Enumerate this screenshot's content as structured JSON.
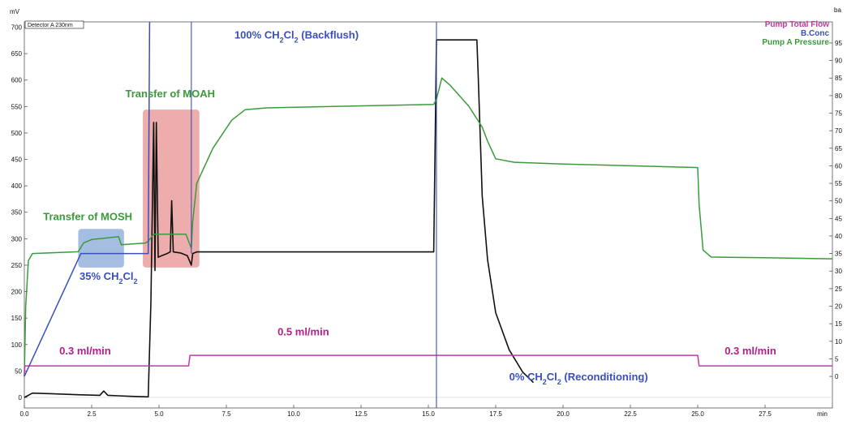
{
  "chart_data": {
    "type": "line",
    "detector_label": "Detector A 230nm",
    "y_left": {
      "unit": "mV",
      "lim": [
        -20,
        710
      ],
      "ticks": [
        700,
        650,
        600,
        550,
        500,
        450,
        400,
        350,
        300,
        250,
        200,
        150,
        100,
        50,
        0
      ]
    },
    "y_right": {
      "unit": "ba",
      "lim": [
        -9,
        101
      ],
      "ticks": [
        95,
        90,
        85,
        80,
        75,
        70,
        65,
        60,
        55,
        50,
        45,
        40,
        35,
        30,
        25,
        20,
        15,
        10,
        5,
        0
      ]
    },
    "x": {
      "unit": "min",
      "lim": [
        0,
        30
      ],
      "ticks": [
        "0.0",
        "2.5",
        "5.0",
        "7.5",
        "10.0",
        "12.5",
        "15.0",
        "17.5",
        "20.0",
        "22.5",
        "25.0",
        "27.5"
      ],
      "tick_values": [
        0,
        2.5,
        5,
        7.5,
        10,
        12.5,
        15,
        17.5,
        20,
        22.5,
        25,
        27.5
      ]
    },
    "legend": [
      {
        "name": "Pump Total Flow",
        "color": "#c23aa0"
      },
      {
        "name": "B.Conc",
        "color": "#3a4fb8"
      },
      {
        "name": "Pump A Pressure",
        "color": "#3c9a3c"
      }
    ],
    "series": [
      {
        "name": "Detector A 230nm",
        "axis": "left",
        "color": "#111111",
        "points": [
          [
            0,
            0
          ],
          [
            0.3,
            8
          ],
          [
            1,
            7
          ],
          [
            2,
            5
          ],
          [
            2.8,
            4
          ],
          [
            2.95,
            12
          ],
          [
            3.1,
            4
          ],
          [
            3.5,
            3
          ],
          [
            4,
            2
          ],
          [
            4.6,
            1
          ],
          [
            4.7,
            180
          ],
          [
            4.8,
            520
          ],
          [
            4.85,
            240
          ],
          [
            4.9,
            520
          ],
          [
            4.97,
            265
          ],
          [
            5.1,
            268
          ],
          [
            5.3,
            272
          ],
          [
            5.42,
            275
          ],
          [
            5.47,
            372
          ],
          [
            5.53,
            275
          ],
          [
            5.8,
            273
          ],
          [
            6.05,
            268
          ],
          [
            6.2,
            250
          ],
          [
            6.25,
            272
          ],
          [
            6.4,
            275
          ],
          [
            15.2,
            275
          ],
          [
            15.3,
            676
          ],
          [
            16.8,
            676
          ],
          [
            16.85,
            610
          ],
          [
            17.0,
            380
          ],
          [
            17.2,
            260
          ],
          [
            17.5,
            160
          ],
          [
            18.0,
            90
          ],
          [
            18.5,
            48
          ],
          [
            18.9,
            28
          ]
        ]
      },
      {
        "name": "Pump A Pressure",
        "axis": "right",
        "color": "#3c9a3c",
        "points": [
          [
            0,
            0
          ],
          [
            0.05,
            20
          ],
          [
            0.15,
            33
          ],
          [
            0.3,
            35
          ],
          [
            2,
            35.5
          ],
          [
            2.2,
            38
          ],
          [
            2.5,
            39
          ],
          [
            3.5,
            39.8
          ],
          [
            3.6,
            37.5
          ],
          [
            4.5,
            38
          ],
          [
            4.6,
            38.5
          ],
          [
            4.8,
            40.5
          ],
          [
            6.0,
            40.5
          ],
          [
            6.2,
            36.5
          ],
          [
            6.25,
            44
          ],
          [
            6.4,
            55
          ],
          [
            7.0,
            65
          ],
          [
            7.7,
            73
          ],
          [
            8.2,
            76
          ],
          [
            9.0,
            76.5
          ],
          [
            12,
            77
          ],
          [
            15.2,
            77.5
          ],
          [
            15.3,
            79
          ],
          [
            15.5,
            85
          ],
          [
            15.8,
            83
          ],
          [
            16.5,
            77
          ],
          [
            17.0,
            71
          ],
          [
            17.2,
            67
          ],
          [
            17.5,
            62
          ],
          [
            18.2,
            61
          ],
          [
            20,
            60.5
          ],
          [
            22.5,
            60
          ],
          [
            25.0,
            59.5
          ],
          [
            25.05,
            49
          ],
          [
            25.2,
            36
          ],
          [
            25.5,
            34
          ],
          [
            27.5,
            33.8
          ],
          [
            30,
            33.5
          ]
        ]
      },
      {
        "name": "Pump Total Flow",
        "axis": "right",
        "color": "#c23aa0",
        "points": [
          [
            0,
            0
          ],
          [
            0.02,
            3
          ],
          [
            6.1,
            3
          ],
          [
            6.15,
            6
          ],
          [
            25.0,
            6
          ],
          [
            25.05,
            3
          ],
          [
            30,
            3
          ]
        ]
      },
      {
        "name": "B.Conc",
        "axis": "right",
        "color": "#3a4fb8",
        "points": [
          [
            0,
            0
          ],
          [
            2.1,
            35
          ],
          [
            4.6,
            35
          ],
          [
            4.65,
            101
          ]
        ],
        "segments": [
          [
            [
              6.2,
              35
            ],
            [
              6.2,
              101
            ]
          ],
          [
            [
              15.3,
              101
            ],
            [
              15.3,
              -9
            ]
          ]
        ]
      }
    ],
    "annotations": [
      {
        "text": "Transfer of MOSH",
        "color": "#3a9a3a"
      },
      {
        "text": "Transfer of MOAH",
        "color": "#3a9a3a"
      },
      {
        "text": "100% CH₂Cl₂ (Backflush)",
        "color": "#3a4fb8"
      },
      {
        "text": "35% CH₂Cl₂",
        "color": "#3a4fb8"
      },
      {
        "text": "0.3 ml/min",
        "color": "#b0208a"
      },
      {
        "text": "0.5 ml/min",
        "color": "#b0208a"
      },
      {
        "text": "0.3 ml/min",
        "color": "#b0208a"
      },
      {
        "text": "0% CH₂Cl₂ (Reconditioning)",
        "color": "#3a4fb8"
      }
    ],
    "highlights": [
      {
        "name": "MOSH window",
        "x": [
          2.0,
          3.7
        ],
        "right_y": [
          31,
          42
        ],
        "color": "#5b86c9"
      },
      {
        "name": "MOAH window",
        "x": [
          4.4,
          6.5
        ],
        "right_y": [
          31,
          76
        ],
        "color": "#e06a6a"
      }
    ]
  }
}
